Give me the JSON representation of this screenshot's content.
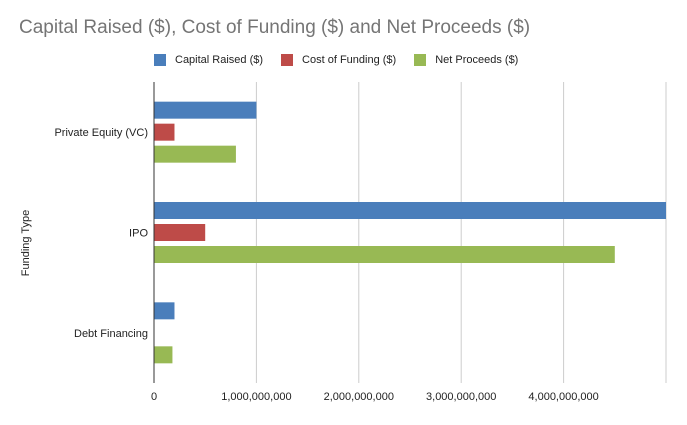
{
  "chart_data": {
    "type": "bar",
    "orientation": "horizontal",
    "title": "Capital Raised ($), Cost of Funding ($) and Net Proceeds ($)",
    "xlabel": "",
    "ylabel": "Funding Type",
    "categories": [
      "Private Equity (VC)",
      "IPO",
      "Debt Financing"
    ],
    "series": [
      {
        "name": "Capital Raised ($)",
        "color": "#4a7ebb",
        "values": [
          1000000000,
          5000000000,
          200000000
        ]
      },
      {
        "name": "Cost of Funding ($)",
        "color": "#be4b48",
        "values": [
          200000000,
          500000000,
          0
        ]
      },
      {
        "name": "Net Proceeds ($)",
        "color": "#98b954",
        "values": [
          800000000,
          4500000000,
          180000000
        ]
      }
    ],
    "xlim": [
      0,
      5000000000
    ],
    "xticks": [
      0,
      1000000000,
      2000000000,
      3000000000,
      4000000000
    ],
    "xtick_labels": [
      "0",
      "1,000,000,000",
      "2,000,000,000",
      "3,000,000,000",
      "4,000,000,000"
    ],
    "grid": true,
    "legend_position": "top"
  }
}
